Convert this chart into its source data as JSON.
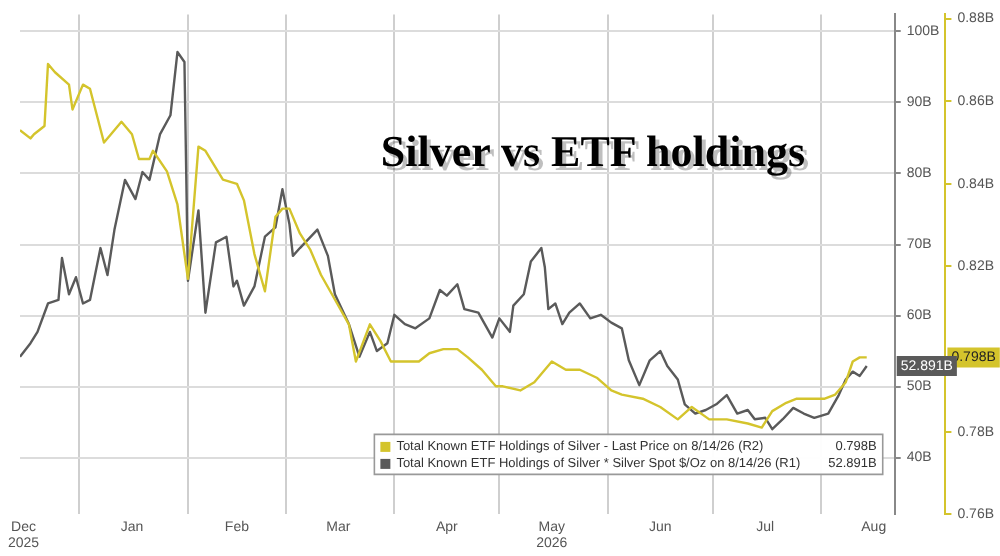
{
  "chart_data": {
    "type": "line",
    "title": "Silver vs ETF holdings",
    "xlim": [
      "2025-12-15",
      "2026-08-22"
    ],
    "xticks": [
      {
        "value": "2025-12-16",
        "label": "Dec\n2025"
      },
      {
        "value": "2026-01-01",
        "label": null
      },
      {
        "value": "2026-01-16",
        "label": "Jan"
      },
      {
        "value": "2026-02-01",
        "label": null
      },
      {
        "value": "2026-02-15",
        "label": "Feb"
      },
      {
        "value": "2026-03-01",
        "label": null
      },
      {
        "value": "2026-03-16",
        "label": "Mar"
      },
      {
        "value": "2026-04-01",
        "label": null
      },
      {
        "value": "2026-04-16",
        "label": "Apr"
      },
      {
        "value": "2026-05-01",
        "label": null
      },
      {
        "value": "2026-05-16",
        "label": "May\n2026"
      },
      {
        "value": "2026-06-01",
        "label": null
      },
      {
        "value": "2026-06-16",
        "label": "Jun"
      },
      {
        "value": "2026-07-01",
        "label": null
      },
      {
        "value": "2026-07-16",
        "label": "Jul"
      },
      {
        "value": "2026-08-01",
        "label": null
      },
      {
        "value": "2026-08-16",
        "label": "Aug"
      }
    ],
    "ylim": [
      32,
      102.4
    ],
    "yticks": [
      {
        "value": 40,
        "label": "40B"
      },
      {
        "value": 50,
        "label": "50B"
      },
      {
        "value": 60,
        "label": "60B"
      },
      {
        "value": 70,
        "label": "70B"
      },
      {
        "value": 80,
        "label": "80B"
      },
      {
        "value": 90,
        "label": "90B"
      },
      {
        "value": 100,
        "label": "100B"
      }
    ],
    "y2lim": [
      0.76,
      0.881
    ],
    "y2ticks": [
      {
        "value": 0.76,
        "label": "0.76B"
      },
      {
        "value": 0.78,
        "label": "0.78B"
      },
      {
        "value": 0.82,
        "label": "0.82B"
      },
      {
        "value": 0.84,
        "label": "0.84B"
      },
      {
        "value": 0.86,
        "label": "0.86B"
      },
      {
        "value": 0.88,
        "label": "0.88B"
      }
    ],
    "grid": true,
    "legend": "bottom right",
    "annotations": [
      "0.798B",
      "52.891B"
    ],
    "series": [
      {
        "name": "Total Known ETF Holdings of Silver - Last Price on 8/14/26 (R2)",
        "color": "#d4c42c",
        "axis": "y2",
        "x": [
          "2025-12-15",
          "2025-12-18",
          "2025-12-19",
          "2025-12-22",
          "2025-12-23",
          "2025-12-25",
          "2025-12-29",
          "2025-12-30",
          "2026-01-02",
          "2026-01-04",
          "2026-01-08",
          "2026-01-10",
          "2026-01-13",
          "2026-01-16",
          "2026-01-18",
          "2026-01-21",
          "2026-01-22",
          "2026-01-26",
          "2026-01-29",
          "2026-02-01",
          "2026-02-04",
          "2026-02-06",
          "2026-02-11",
          "2026-02-15",
          "2026-02-17",
          "2026-02-20",
          "2026-02-23",
          "2026-02-26",
          "2026-02-28",
          "2026-03-02",
          "2026-03-05",
          "2026-03-08",
          "2026-03-11",
          "2026-03-15",
          "2026-03-19",
          "2026-03-21",
          "2026-03-25",
          "2026-03-28",
          "2026-03-31",
          "2026-04-04",
          "2026-04-08",
          "2026-04-11",
          "2026-04-15",
          "2026-04-19",
          "2026-04-22",
          "2026-04-26",
          "2026-04-30",
          "2026-05-02",
          "2026-05-07",
          "2026-05-11",
          "2026-05-16",
          "2026-05-20",
          "2026-05-24",
          "2026-05-29",
          "2026-06-02",
          "2026-06-05",
          "2026-06-11",
          "2026-06-16",
          "2026-06-21",
          "2026-06-25",
          "2026-06-30",
          "2026-07-05",
          "2026-07-11",
          "2026-07-15",
          "2026-07-18",
          "2026-07-22",
          "2026-07-25",
          "2026-07-29",
          "2026-08-02",
          "2026-08-05",
          "2026-08-08",
          "2026-08-10",
          "2026-08-12",
          "2026-08-14"
        ],
        "values": [
          0.853,
          0.851,
          0.852,
          0.854,
          0.869,
          0.867,
          0.864,
          0.858,
          0.864,
          0.863,
          0.85,
          0.852,
          0.855,
          0.852,
          0.846,
          0.846,
          0.848,
          0.843,
          0.835,
          0.817,
          0.849,
          0.848,
          0.841,
          0.84,
          0.836,
          0.823,
          0.814,
          0.832,
          0.834,
          0.834,
          0.828,
          0.824,
          0.818,
          0.812,
          0.806,
          0.797,
          0.806,
          0.802,
          0.797,
          0.797,
          0.797,
          0.799,
          0.8,
          0.8,
          0.798,
          0.795,
          0.791,
          0.791,
          0.79,
          0.792,
          0.797,
          0.795,
          0.795,
          0.793,
          0.79,
          0.789,
          0.788,
          0.786,
          0.783,
          0.786,
          0.783,
          0.783,
          0.782,
          0.781,
          0.785,
          0.787,
          0.788,
          0.788,
          0.788,
          0.789,
          0.792,
          0.797,
          0.798,
          0.798
        ]
      },
      {
        "name": "Total Known ETF Holdings of Silver * Silver Spot $/Oz on 8/14/26 (R1)",
        "color": "#5a5a5a",
        "axis": "y",
        "x": [
          "2025-12-15",
          "2025-12-18",
          "2025-12-20",
          "2025-12-23",
          "2025-12-26",
          "2025-12-27",
          "2025-12-29",
          "2025-12-31",
          "2026-01-02",
          "2026-01-04",
          "2026-01-07",
          "2026-01-09",
          "2026-01-11",
          "2026-01-14",
          "2026-01-17",
          "2026-01-19",
          "2026-01-21",
          "2026-01-24",
          "2026-01-27",
          "2026-01-29",
          "2026-01-31",
          "2026-02-01",
          "2026-02-04",
          "2026-02-06",
          "2026-02-09",
          "2026-02-12",
          "2026-02-14",
          "2026-02-15",
          "2026-02-17",
          "2026-02-20",
          "2026-02-23",
          "2026-02-26",
          "2026-02-28",
          "2026-03-02",
          "2026-03-03",
          "2026-03-05",
          "2026-03-10",
          "2026-03-13",
          "2026-03-15",
          "2026-03-19",
          "2026-03-22",
          "2026-03-25",
          "2026-03-27",
          "2026-03-30",
          "2026-04-01",
          "2026-04-04",
          "2026-04-07",
          "2026-04-11",
          "2026-04-14",
          "2026-04-16",
          "2026-04-19",
          "2026-04-21",
          "2026-04-25",
          "2026-04-29",
          "2026-05-01",
          "2026-05-04",
          "2026-05-05",
          "2026-05-08",
          "2026-05-10",
          "2026-05-13",
          "2026-05-14",
          "2026-05-15",
          "2026-05-17",
          "2026-05-19",
          "2026-05-21",
          "2026-05-24",
          "2026-05-27",
          "2026-05-30",
          "2026-06-02",
          "2026-06-05",
          "2026-06-07",
          "2026-06-10",
          "2026-06-13",
          "2026-06-16",
          "2026-06-18",
          "2026-06-21",
          "2026-06-23",
          "2026-06-26",
          "2026-06-29",
          "2026-07-02",
          "2026-07-05",
          "2026-07-08",
          "2026-07-11",
          "2026-07-13",
          "2026-07-16",
          "2026-07-18",
          "2026-07-21",
          "2026-07-24",
          "2026-07-27",
          "2026-07-30",
          "2026-08-03",
          "2026-08-06",
          "2026-08-08",
          "2026-08-10",
          "2026-08-12",
          "2026-08-14"
        ],
        "values": [
          54.2,
          56.1,
          57.7,
          61.7,
          62.2,
          68.1,
          63.0,
          65.4,
          61.7,
          62.2,
          69.5,
          65.7,
          72.1,
          79.1,
          76.4,
          80.2,
          79.1,
          85.5,
          88.2,
          97.1,
          95.7,
          64.9,
          74.8,
          60.4,
          70.3,
          71.1,
          64.1,
          64.9,
          61.4,
          64.1,
          71.1,
          72.4,
          77.8,
          72.9,
          68.4,
          69.5,
          72.1,
          68.4,
          63.0,
          58.8,
          54.2,
          57.7,
          55.0,
          56.1,
          60.1,
          58.8,
          58.2,
          59.6,
          63.6,
          62.8,
          64.4,
          60.9,
          60.4,
          56.9,
          59.6,
          57.7,
          61.4,
          63.0,
          67.6,
          69.5,
          66.8,
          60.9,
          61.7,
          58.8,
          60.4,
          61.7,
          59.6,
          60.1,
          59.0,
          58.2,
          53.7,
          50.2,
          53.7,
          55.0,
          52.9,
          51.0,
          47.5,
          46.2,
          46.7,
          47.5,
          48.8,
          46.2,
          46.7,
          45.4,
          45.6,
          44.0,
          45.4,
          47.0,
          46.2,
          45.6,
          46.2,
          48.8,
          51.0,
          52.1,
          51.5,
          52.891
        ]
      }
    ]
  }
}
